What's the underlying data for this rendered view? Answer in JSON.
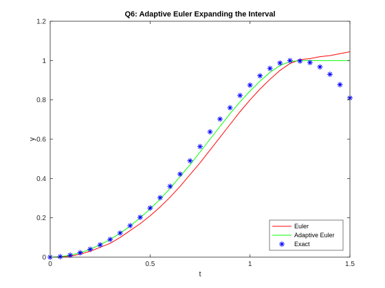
{
  "chart_data": {
    "type": "line",
    "title": "Q6: Adaptive Euler Expanding the Interval",
    "xlabel": "t",
    "ylabel": "y",
    "xlim": [
      0,
      1.5
    ],
    "ylim": [
      0,
      1.2
    ],
    "xticks": [
      "0",
      "0.5",
      "1",
      "1.5"
    ],
    "yticks": [
      "0",
      "0.2",
      "0.4",
      "0.6",
      "0.8",
      "1",
      "1.2"
    ],
    "grid": false,
    "legend_position": "bottom-right",
    "series": [
      {
        "name": "Euler",
        "color": "#ff0000",
        "style": "line",
        "x": [
          0,
          0.05,
          0.1,
          0.15,
          0.2,
          0.25,
          0.3,
          0.35,
          0.4,
          0.45,
          0.5,
          0.55,
          0.6,
          0.65,
          0.7,
          0.75,
          0.8,
          0.85,
          0.9,
          0.95,
          1.0,
          1.05,
          1.1,
          1.15,
          1.2,
          1.25,
          1.3,
          1.35,
          1.4,
          1.45,
          1.5
        ],
        "y": [
          0,
          0,
          0.005,
          0.015,
          0.03,
          0.05,
          0.07,
          0.1,
          0.135,
          0.17,
          0.21,
          0.255,
          0.305,
          0.36,
          0.42,
          0.48,
          0.545,
          0.61,
          0.675,
          0.74,
          0.8,
          0.855,
          0.905,
          0.95,
          0.985,
          1.005,
          1.01,
          1.02,
          1.025,
          1.035,
          1.045
        ]
      },
      {
        "name": "Adaptive Euler",
        "color": "#00ff00",
        "style": "line",
        "x": [
          0,
          0.05,
          0.1,
          0.15,
          0.2,
          0.25,
          0.3,
          0.35,
          0.4,
          0.45,
          0.5,
          0.55,
          0.6,
          0.65,
          0.7,
          0.75,
          0.8,
          0.85,
          0.9,
          0.95,
          1.0,
          1.05,
          1.1,
          1.15,
          1.2,
          1.25,
          1.3,
          1.35,
          1.4,
          1.45,
          1.5
        ],
        "y": [
          0,
          0.002,
          0.01,
          0.022,
          0.04,
          0.063,
          0.09,
          0.122,
          0.158,
          0.2,
          0.245,
          0.295,
          0.35,
          0.41,
          0.47,
          0.535,
          0.6,
          0.665,
          0.73,
          0.79,
          0.845,
          0.895,
          0.94,
          0.975,
          0.995,
          1.0,
          1.0,
          1.0,
          1.0,
          1.0,
          1.0
        ]
      },
      {
        "name": "Exact",
        "color": "#0000ff",
        "style": "marker",
        "x": [
          0,
          0.05,
          0.1,
          0.15,
          0.2,
          0.25,
          0.3,
          0.35,
          0.4,
          0.45,
          0.5,
          0.55,
          0.6,
          0.65,
          0.7,
          0.75,
          0.8,
          0.85,
          0.9,
          0.95,
          1.0,
          1.05,
          1.1,
          1.15,
          1.2,
          1.25,
          1.3,
          1.35,
          1.4,
          1.45,
          1.5
        ],
        "y": [
          0,
          0.0025,
          0.01,
          0.0225,
          0.04,
          0.0625,
          0.09,
          0.1225,
          0.16,
          0.2025,
          0.25,
          0.3025,
          0.36,
          0.4225,
          0.49,
          0.5625,
          0.6375,
          0.7025,
          0.76,
          0.8225,
          0.875,
          0.9225,
          0.96,
          0.9875,
          1.0,
          0.9975,
          0.99,
          0.9675,
          0.93,
          0.8775,
          0.81
        ]
      }
    ]
  }
}
